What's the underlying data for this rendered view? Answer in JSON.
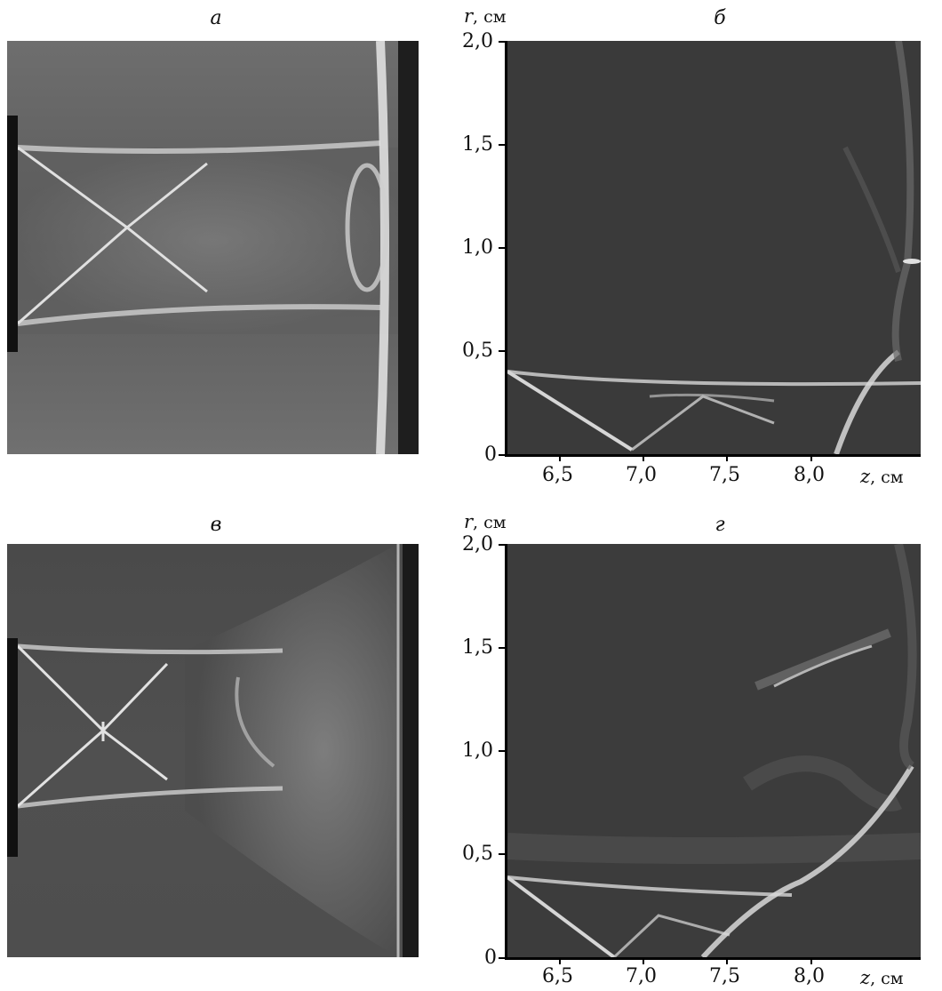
{
  "panels": {
    "a": {
      "letter": "а"
    },
    "b": {
      "letter": "б"
    },
    "c": {
      "letter": "в"
    },
    "d": {
      "letter": "г"
    }
  },
  "axes": {
    "r_var": "r",
    "z_var": "z",
    "unit": ", см",
    "y_ticks": [
      "2,0",
      "1,5",
      "1,0",
      "0,5",
      "0"
    ],
    "x_ticks": [
      "6,5",
      "7,0",
      "7,5",
      "8,0"
    ]
  },
  "colors": {
    "photo_bg": "#5a5a5a",
    "plot_bg": "#3a3a3a",
    "shock": "#d8d8d8"
  }
}
